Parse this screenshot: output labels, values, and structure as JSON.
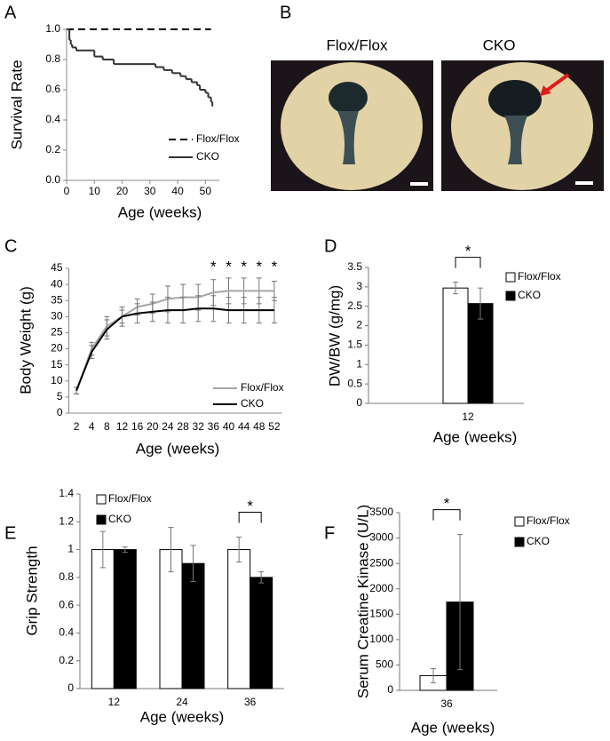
{
  "chart_data": [
    {
      "type": "line",
      "panel": "A",
      "step": true,
      "y_label": "Survival Rate",
      "x_label": "Age (weeks)",
      "xlim": [
        0,
        55
      ],
      "xticks": [
        0,
        10,
        20,
        30,
        40,
        50
      ],
      "ylim": [
        0,
        1
      ],
      "yticks": [
        {
          "value": 0,
          "label": "0.0"
        },
        0.2,
        0.4,
        0.6,
        0.8,
        {
          "value": 1,
          "label": "1.0"
        }
      ],
      "legend": "lower right",
      "series": [
        {
          "name": "Flox/Flox",
          "color": "#000000",
          "line_style": "dashed",
          "x": [
            0,
            52
          ],
          "values": [
            1,
            1
          ]
        },
        {
          "name": "CKO",
          "color": "#333333",
          "line_style": "solid",
          "x": [
            0,
            1,
            1.5,
            2,
            3.5,
            10,
            13,
            17,
            32,
            35,
            38,
            41,
            43,
            45,
            47,
            48,
            50,
            51,
            52,
            52.5
          ],
          "values": [
            1,
            0.93,
            0.9,
            0.88,
            0.86,
            0.82,
            0.8,
            0.77,
            0.75,
            0.73,
            0.71,
            0.69,
            0.67,
            0.65,
            0.63,
            0.6,
            0.58,
            0.55,
            0.52,
            0.49
          ]
        }
      ]
    },
    {
      "type": "image",
      "panel": "B",
      "labels": [
        "Flox/Flox",
        "CKO"
      ]
    },
    {
      "type": "line",
      "panel": "C",
      "y_label": "Body Weight (g)",
      "x_label": "Age (weeks)",
      "categories": [
        "2",
        "4",
        "8",
        "12",
        "16",
        "20",
        "24",
        "28",
        "32",
        "36",
        "40",
        "44",
        "48",
        "52"
      ],
      "ylim": [
        0,
        45
      ],
      "yticks": [
        0,
        5,
        10,
        15,
        20,
        25,
        30,
        35,
        40,
        45
      ],
      "legend": "lower right",
      "series": [
        {
          "name": "Flox/Flox",
          "color": "#a6a6a6",
          "values": [
            7,
            20,
            27,
            30,
            33,
            34,
            35.5,
            36,
            36,
            37.5,
            38,
            38,
            38,
            38
          ],
          "errors": [
            1,
            2,
            3,
            3,
            2.5,
            3,
            4,
            4,
            4,
            4,
            4,
            4,
            4,
            3
          ]
        },
        {
          "name": "CKO",
          "color": "#000000",
          "values": [
            7,
            19,
            26,
            30,
            31,
            31.5,
            32,
            32,
            32.5,
            32.5,
            32,
            32,
            32,
            32
          ],
          "errors": [
            1,
            2,
            3,
            2,
            3,
            3,
            4,
            4,
            4,
            4,
            4,
            4,
            4,
            4
          ]
        }
      ],
      "annotations": [
        {
          "text": "*",
          "category": "36"
        },
        {
          "text": "*",
          "category": "40"
        },
        {
          "text": "*",
          "category": "44"
        },
        {
          "text": "*",
          "category": "48"
        },
        {
          "text": "*",
          "category": "52"
        }
      ]
    },
    {
      "type": "bar",
      "panel": "D",
      "y_label": "DW/BW (g/mg)",
      "x_label": "Age (weeks)",
      "categories": [
        "12"
      ],
      "ylim": [
        0,
        3.5
      ],
      "yticks": [
        0,
        0.5,
        1,
        1.5,
        2,
        2.5,
        3,
        3.5
      ],
      "legend": "right",
      "series": [
        {
          "name": "Flox/Flox",
          "color": "#ffffff",
          "values": [
            2.97
          ],
          "errors": [
            0.15
          ]
        },
        {
          "name": "CKO",
          "color": "#000000",
          "values": [
            2.57
          ],
          "errors": [
            0.4
          ]
        }
      ],
      "annotations": [
        {
          "text": "*",
          "category": "12"
        }
      ]
    },
    {
      "type": "bar",
      "panel": "E",
      "y_label": "Grip Strength",
      "x_label": "Age (weeks)",
      "categories": [
        "12",
        "24",
        "36"
      ],
      "ylim": [
        0,
        1.4
      ],
      "yticks": [
        0,
        0.2,
        0.4,
        0.6,
        0.8,
        1,
        1.2,
        1.4
      ],
      "legend": "upper left",
      "series": [
        {
          "name": "Flox/Flox",
          "color": "#ffffff",
          "values": [
            1,
            1,
            1
          ],
          "errors": [
            0.13,
            0.16,
            0.09
          ]
        },
        {
          "name": "CKO",
          "color": "#000000",
          "values": [
            1,
            0.9,
            0.8
          ],
          "errors": [
            0.02,
            0.13,
            0.04
          ]
        }
      ],
      "annotations": [
        {
          "text": "*",
          "category": "36"
        }
      ]
    },
    {
      "type": "bar",
      "panel": "F",
      "y_label": "Serum Creatine Kinase (U/L)",
      "x_label": "Age (weeks)",
      "categories": [
        "36"
      ],
      "ylim": [
        0,
        3500
      ],
      "yticks": [
        0,
        500,
        1000,
        1500,
        2000,
        2500,
        3000,
        3500
      ],
      "legend": "right",
      "series": [
        {
          "name": "Flox/Flox",
          "color": "#ffffff",
          "values": [
            290
          ],
          "errors": [
            140
          ]
        },
        {
          "name": "CKO",
          "color": "#000000",
          "values": [
            1740
          ],
          "errors": [
            1330
          ]
        }
      ],
      "annotations": [
        {
          "text": "*",
          "category": "36"
        }
      ]
    }
  ]
}
